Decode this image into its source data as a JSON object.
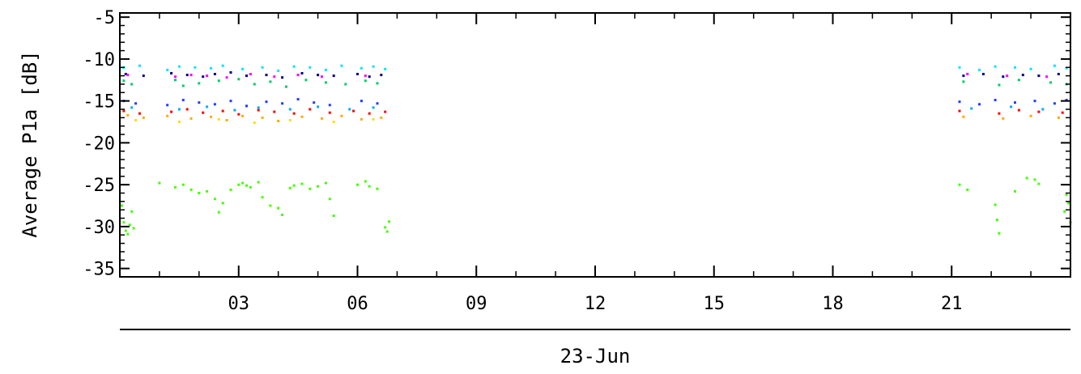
{
  "chart_data": {
    "type": "scatter",
    "ylabel": "Average P1a [dB]",
    "xlabel": "23-Jun",
    "xlim": [
      0,
      24
    ],
    "ylim": [
      -36,
      -4.5
    ],
    "x_ticks": [
      3,
      6,
      9,
      12,
      15,
      18,
      21
    ],
    "x_tick_labels": [
      "03",
      "06",
      "09",
      "12",
      "15",
      "18",
      "21"
    ],
    "y_ticks": [
      -35,
      -30,
      -25,
      -20,
      -15,
      -10,
      -5
    ],
    "y_tick_labels": [
      "-35",
      "-30",
      "-25",
      "-20",
      "-15",
      "-10",
      "-5"
    ],
    "grid": false,
    "series": [
      {
        "color": "#00e5ff",
        "points": [
          [
            0.1,
            -11.0
          ],
          [
            0.5,
            -10.8
          ],
          [
            1.2,
            -11.3
          ],
          [
            1.5,
            -10.9
          ],
          [
            1.9,
            -11.0
          ],
          [
            2.3,
            -11.1
          ],
          [
            2.6,
            -10.8
          ],
          [
            3.1,
            -11.2
          ],
          [
            3.6,
            -11.0
          ],
          [
            4.0,
            -11.4
          ],
          [
            4.4,
            -10.9
          ],
          [
            4.8,
            -11.0
          ],
          [
            5.2,
            -11.3
          ],
          [
            5.6,
            -10.8
          ],
          [
            6.1,
            -11.1
          ],
          [
            6.4,
            -10.9
          ],
          [
            6.7,
            -11.2
          ],
          [
            21.2,
            -11.0
          ],
          [
            21.7,
            -11.3
          ],
          [
            22.1,
            -10.9
          ],
          [
            22.6,
            -11.0
          ],
          [
            23.0,
            -11.2
          ],
          [
            23.6,
            -10.8
          ],
          [
            23.9,
            -11.1
          ]
        ]
      },
      {
        "color": "#000080",
        "points": [
          [
            0.15,
            -11.8
          ],
          [
            0.6,
            -12.0
          ],
          [
            1.3,
            -11.7
          ],
          [
            1.7,
            -11.9
          ],
          [
            2.1,
            -12.1
          ],
          [
            2.4,
            -11.8
          ],
          [
            2.8,
            -11.6
          ],
          [
            3.2,
            -12.0
          ],
          [
            3.7,
            -11.9
          ],
          [
            4.1,
            -12.2
          ],
          [
            4.6,
            -11.7
          ],
          [
            5.0,
            -11.9
          ],
          [
            5.4,
            -12.0
          ],
          [
            6.0,
            -11.8
          ],
          [
            6.3,
            -12.1
          ],
          [
            6.6,
            -11.9
          ],
          [
            21.3,
            -12.0
          ],
          [
            21.8,
            -11.8
          ],
          [
            22.3,
            -12.1
          ],
          [
            22.8,
            -11.9
          ],
          [
            23.2,
            -12.0
          ],
          [
            23.7,
            -11.8
          ]
        ]
      },
      {
        "color": "#ff00ff",
        "points": [
          [
            0.2,
            -11.9
          ],
          [
            1.4,
            -12.1
          ],
          [
            1.8,
            -11.9
          ],
          [
            2.2,
            -12.0
          ],
          [
            2.7,
            -12.2
          ],
          [
            3.3,
            -11.8
          ],
          [
            3.9,
            -12.1
          ],
          [
            4.5,
            -11.9
          ],
          [
            5.1,
            -12.1
          ],
          [
            6.2,
            -12.0
          ],
          [
            21.4,
            -11.8
          ],
          [
            22.4,
            -12.0
          ],
          [
            23.4,
            -12.1
          ]
        ]
      },
      {
        "color": "#00cc66",
        "points": [
          [
            0.1,
            -12.6
          ],
          [
            0.3,
            -13.0
          ],
          [
            1.4,
            -12.5
          ],
          [
            1.6,
            -13.2
          ],
          [
            2.0,
            -12.9
          ],
          [
            2.5,
            -12.6
          ],
          [
            3.0,
            -12.4
          ],
          [
            3.4,
            -13.0
          ],
          [
            3.8,
            -12.7
          ],
          [
            4.2,
            -13.3
          ],
          [
            4.7,
            -12.5
          ],
          [
            5.2,
            -12.8
          ],
          [
            5.7,
            -13.0
          ],
          [
            6.2,
            -12.6
          ],
          [
            6.5,
            -12.9
          ],
          [
            21.3,
            -12.7
          ],
          [
            22.2,
            -13.1
          ],
          [
            22.7,
            -12.5
          ],
          [
            23.5,
            -12.8
          ],
          [
            23.9,
            -13.0
          ]
        ]
      },
      {
        "color": "#1e3cff",
        "points": [
          [
            0.1,
            -15.0
          ],
          [
            0.4,
            -15.3
          ],
          [
            1.2,
            -15.5
          ],
          [
            1.6,
            -14.9
          ],
          [
            2.0,
            -15.2
          ],
          [
            2.4,
            -15.4
          ],
          [
            2.8,
            -15.0
          ],
          [
            3.2,
            -15.6
          ],
          [
            3.7,
            -15.1
          ],
          [
            4.1,
            -15.3
          ],
          [
            4.5,
            -14.8
          ],
          [
            4.9,
            -15.2
          ],
          [
            5.3,
            -15.5
          ],
          [
            6.1,
            -15.0
          ],
          [
            6.5,
            -15.3
          ],
          [
            21.2,
            -15.1
          ],
          [
            21.7,
            -15.4
          ],
          [
            22.1,
            -14.9
          ],
          [
            22.6,
            -15.2
          ],
          [
            23.1,
            -15.0
          ],
          [
            23.6,
            -15.3
          ],
          [
            23.9,
            -14.9
          ]
        ]
      },
      {
        "color": "#00aaff",
        "points": [
          [
            0.3,
            -15.8
          ],
          [
            1.5,
            -16.0
          ],
          [
            2.2,
            -15.7
          ],
          [
            2.9,
            -16.1
          ],
          [
            3.5,
            -15.8
          ],
          [
            4.3,
            -16.0
          ],
          [
            5.0,
            -15.7
          ],
          [
            5.8,
            -16.0
          ],
          [
            6.4,
            -15.8
          ],
          [
            21.5,
            -15.9
          ],
          [
            22.5,
            -15.7
          ],
          [
            23.3,
            -16.0
          ]
        ]
      },
      {
        "color": "#ff0000",
        "points": [
          [
            0.1,
            -16.2
          ],
          [
            0.5,
            -16.5
          ],
          [
            1.3,
            -16.3
          ],
          [
            1.7,
            -16.0
          ],
          [
            2.1,
            -16.4
          ],
          [
            2.6,
            -16.2
          ],
          [
            3.0,
            -16.6
          ],
          [
            3.5,
            -16.1
          ],
          [
            3.9,
            -16.3
          ],
          [
            4.4,
            -16.5
          ],
          [
            4.8,
            -16.0
          ],
          [
            5.3,
            -16.4
          ],
          [
            5.9,
            -16.2
          ],
          [
            6.3,
            -16.5
          ],
          [
            6.7,
            -16.3
          ],
          [
            21.2,
            -16.2
          ],
          [
            22.2,
            -16.5
          ],
          [
            22.7,
            -16.1
          ],
          [
            23.2,
            -16.3
          ],
          [
            23.8,
            -16.4
          ]
        ]
      },
      {
        "color": "#ffaa00",
        "points": [
          [
            0.2,
            -16.7
          ],
          [
            0.6,
            -17.0
          ],
          [
            1.2,
            -16.8
          ],
          [
            1.8,
            -17.1
          ],
          [
            2.3,
            -16.9
          ],
          [
            2.7,
            -17.3
          ],
          [
            3.1,
            -16.8
          ],
          [
            3.6,
            -17.0
          ],
          [
            4.0,
            -17.4
          ],
          [
            4.6,
            -16.9
          ],
          [
            5.1,
            -17.1
          ],
          [
            5.6,
            -16.8
          ],
          [
            6.1,
            -17.2
          ],
          [
            6.6,
            -17.0
          ],
          [
            21.3,
            -16.9
          ],
          [
            22.3,
            -17.1
          ],
          [
            23.0,
            -16.8
          ],
          [
            23.7,
            -17.0
          ]
        ]
      },
      {
        "color": "#ffdd00",
        "points": [
          [
            0.4,
            -17.3
          ],
          [
            1.5,
            -17.5
          ],
          [
            2.5,
            -17.2
          ],
          [
            3.4,
            -17.6
          ],
          [
            4.3,
            -17.3
          ],
          [
            5.4,
            -17.5
          ],
          [
            6.4,
            -17.2
          ]
        ]
      },
      {
        "color": "#44ff00",
        "points": [
          [
            0.05,
            -27.5
          ],
          [
            0.1,
            -29.5
          ],
          [
            0.15,
            -30.5
          ],
          [
            0.2,
            -30.9
          ],
          [
            0.25,
            -29.8
          ],
          [
            0.3,
            -28.2
          ],
          [
            0.35,
            -30.2
          ],
          [
            1.0,
            -24.8
          ],
          [
            1.4,
            -25.3
          ],
          [
            1.6,
            -25.0
          ],
          [
            1.8,
            -25.6
          ],
          [
            2.0,
            -26.0
          ],
          [
            2.2,
            -25.8
          ],
          [
            2.4,
            -26.7
          ],
          [
            2.5,
            -28.3
          ],
          [
            2.6,
            -27.2
          ],
          [
            2.8,
            -25.6
          ],
          [
            3.0,
            -25.0
          ],
          [
            3.1,
            -24.8
          ],
          [
            3.2,
            -25.1
          ],
          [
            3.3,
            -25.3
          ],
          [
            3.5,
            -24.7
          ],
          [
            3.6,
            -26.5
          ],
          [
            3.8,
            -27.5
          ],
          [
            4.0,
            -27.8
          ],
          [
            4.1,
            -28.6
          ],
          [
            4.3,
            -25.4
          ],
          [
            4.4,
            -25.1
          ],
          [
            4.6,
            -24.9
          ],
          [
            4.8,
            -25.5
          ],
          [
            5.0,
            -25.2
          ],
          [
            5.2,
            -24.8
          ],
          [
            5.3,
            -26.7
          ],
          [
            5.4,
            -28.7
          ],
          [
            6.0,
            -25.0
          ],
          [
            6.2,
            -24.6
          ],
          [
            6.3,
            -25.2
          ],
          [
            6.5,
            -25.5
          ],
          [
            6.7,
            -30.1
          ],
          [
            6.75,
            -30.6
          ],
          [
            6.8,
            -29.4
          ],
          [
            21.2,
            -25.0
          ],
          [
            21.4,
            -25.6
          ],
          [
            22.1,
            -27.4
          ],
          [
            22.15,
            -29.2
          ],
          [
            22.2,
            -30.8
          ],
          [
            22.6,
            -25.8
          ],
          [
            22.9,
            -24.2
          ],
          [
            23.1,
            -24.4
          ],
          [
            23.2,
            -24.9
          ],
          [
            23.85,
            -28.2
          ],
          [
            23.9,
            -26.2
          ],
          [
            23.95,
            -27.2
          ],
          [
            24.0,
            -29.5
          ]
        ]
      }
    ]
  }
}
